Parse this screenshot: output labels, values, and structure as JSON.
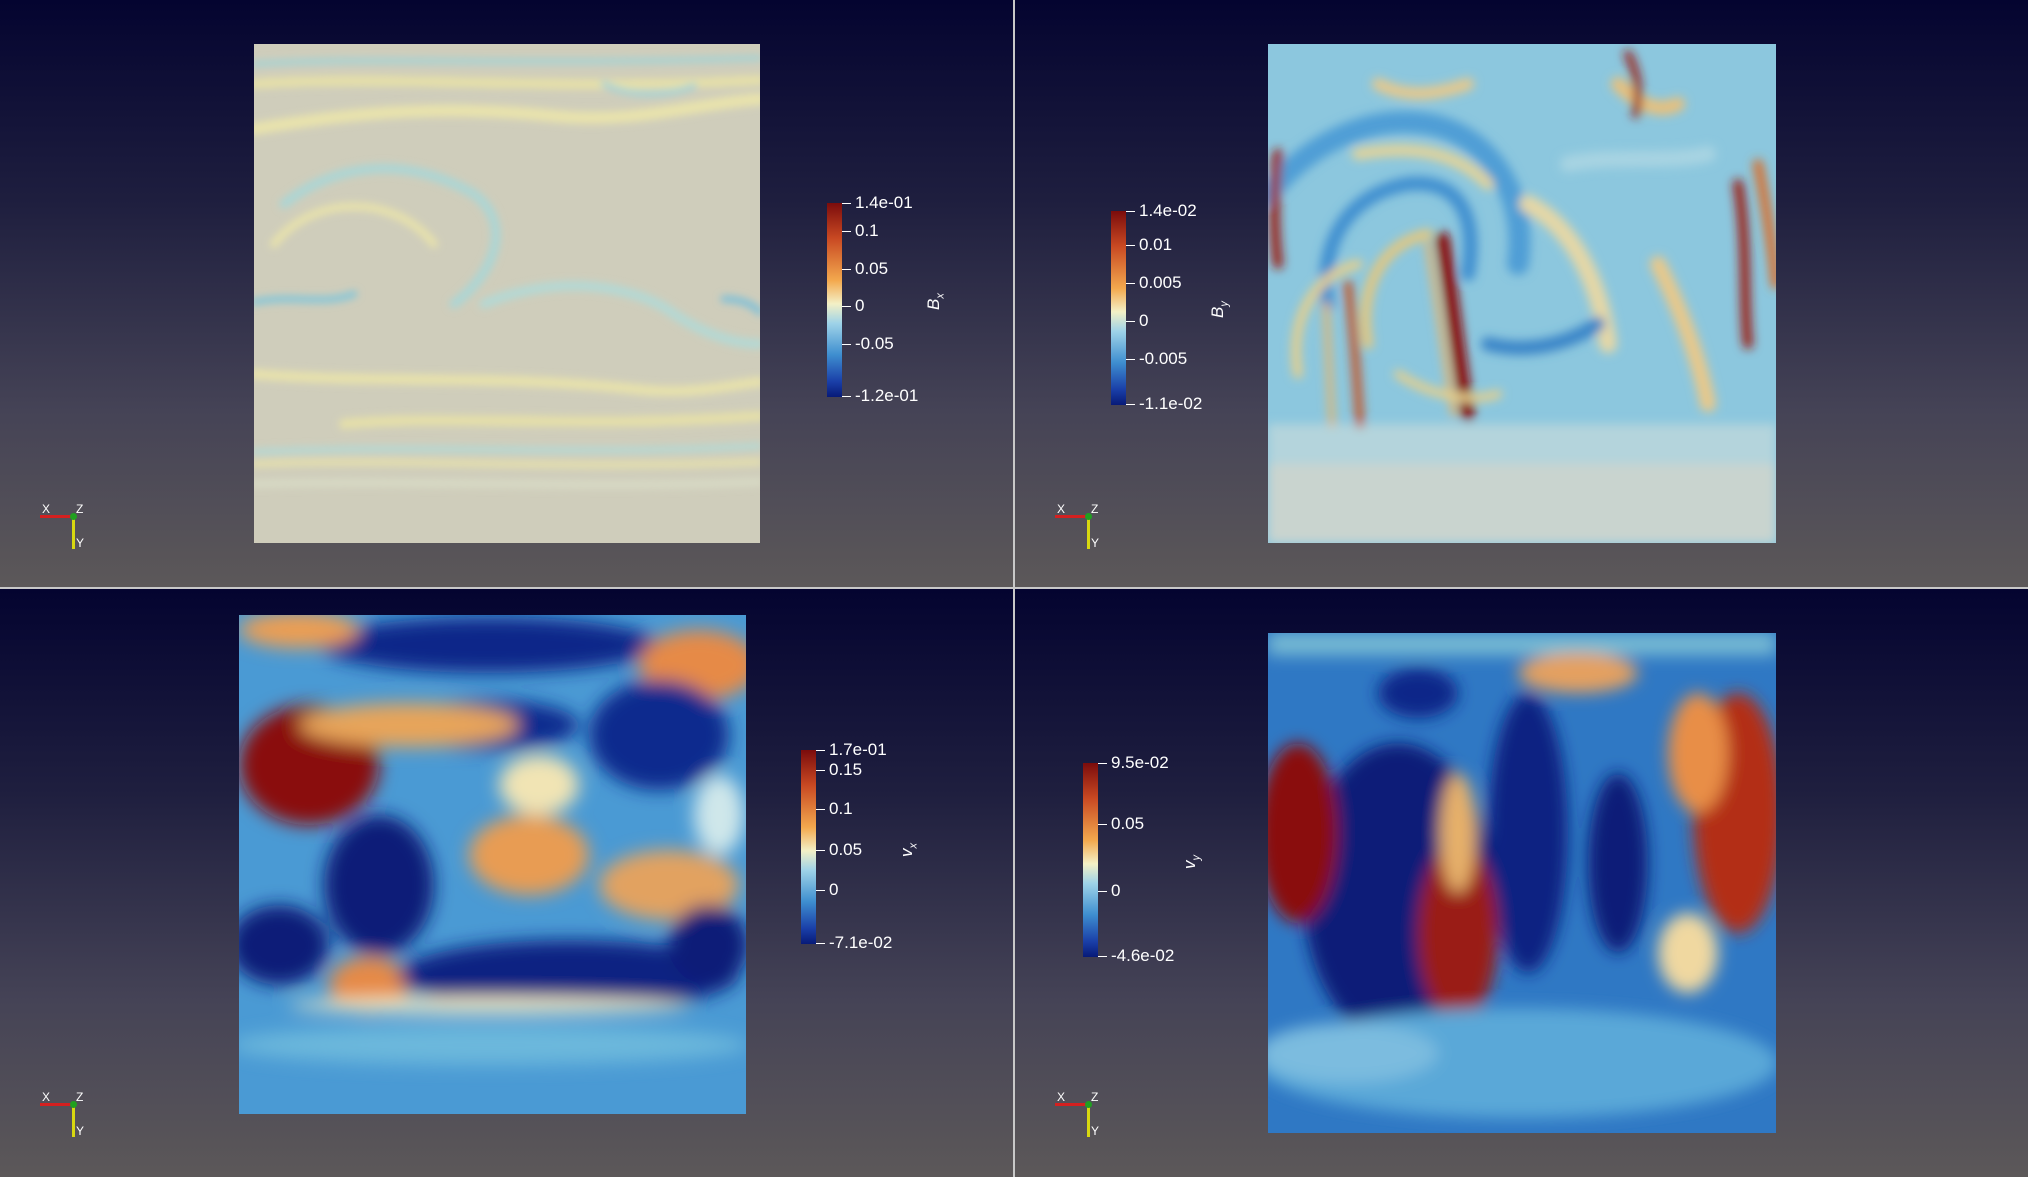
{
  "panels": [
    {
      "field": "Bx",
      "colorbar": {
        "title": "B",
        "title_sub": "x",
        "ticks": [
          "1.4e-01",
          "0.1",
          "0.05",
          "0",
          "-0.05",
          "-1.2e-01"
        ]
      },
      "axes": {
        "x": "X",
        "y": "Y",
        "z": "Z"
      }
    },
    {
      "field": "By",
      "colorbar": {
        "title": "B",
        "title_sub": "y",
        "ticks": [
          "1.4e-02",
          "0.01",
          "0.005",
          "0",
          "-0.005",
          "-1.1e-02"
        ]
      },
      "axes": {
        "x": "X",
        "y": "Y",
        "z": "Z"
      }
    },
    {
      "field": "vx",
      "colorbar": {
        "title": "v",
        "title_sub": "x",
        "ticks": [
          "1.7e-01",
          "0.15",
          "0.1",
          "0.05",
          "0",
          "-7.1e-02"
        ]
      },
      "axes": {
        "x": "X",
        "y": "Y",
        "z": "Z"
      }
    },
    {
      "field": "vy",
      "colorbar": {
        "title": "v",
        "title_sub": "y",
        "ticks": [
          "9.5e-02",
          "0.05",
          "0",
          "-4.6e-02"
        ]
      },
      "axes": {
        "x": "X",
        "y": "Y",
        "z": "Z"
      }
    }
  ],
  "colors": {
    "background_top": "#040430",
    "background_bottom": "#5c5859",
    "divider": "#c8c8c8",
    "cmap_high": "#7b0c0c",
    "cmap_mid": "#f3f0c6",
    "cmap_low": "#071a78"
  }
}
